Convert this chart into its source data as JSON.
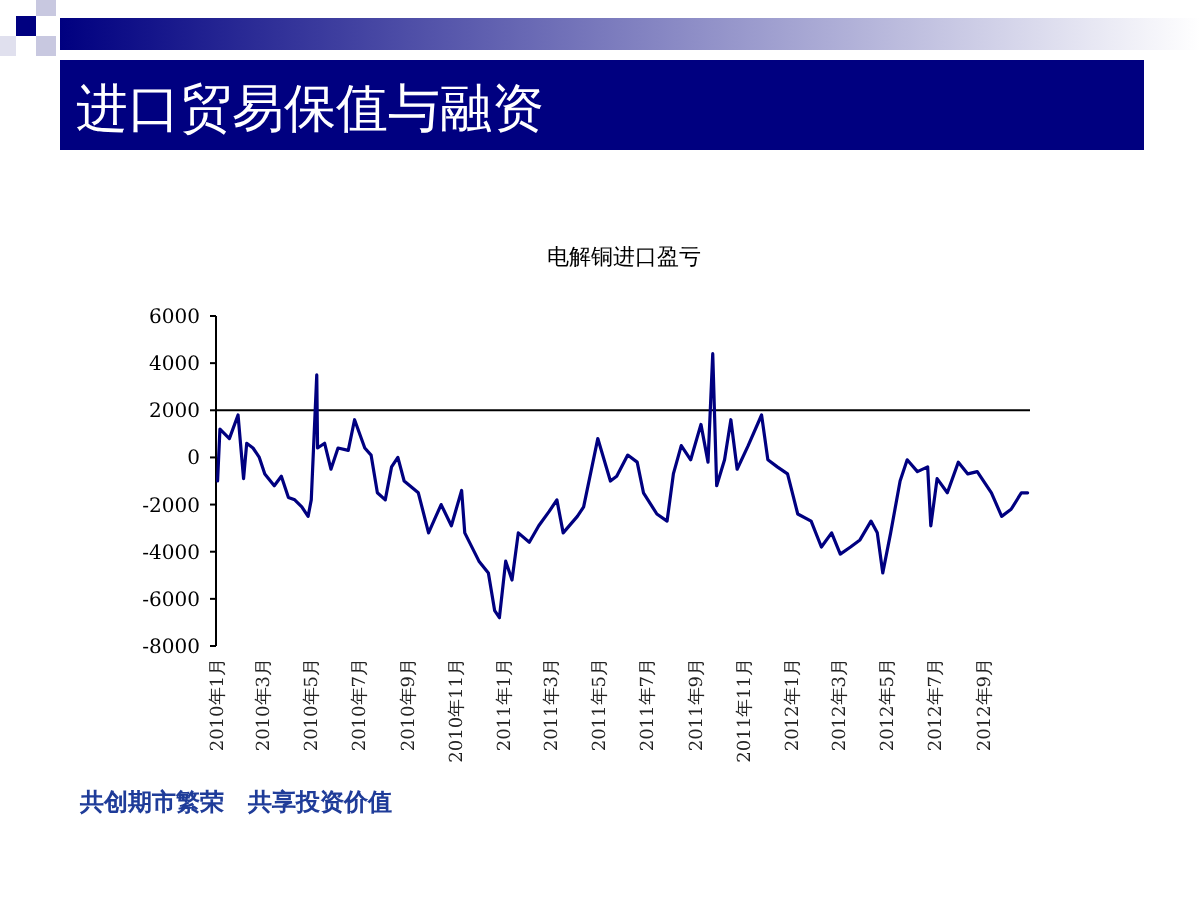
{
  "chart_data": {
    "type": "line",
    "title": "进口贸易保值与融资",
    "subtitle": "电解铜进口盈亏",
    "annotations": [
      "共创期市繁荣　共享投资价值"
    ],
    "x": [
      "2010-01-03",
      "2010-01-06",
      "2010-01-18",
      "2010-01-29",
      "2010-02-05",
      "2010-02-09",
      "2010-02-17",
      "2010-02-25",
      "2010-03-04",
      "2010-03-16",
      "2010-03-25",
      "2010-04-03",
      "2010-04-11",
      "2010-04-20",
      "2010-04-28",
      "2010-05-02",
      "2010-05-09",
      "2010-05-10",
      "2010-05-19",
      "2010-05-27",
      "2010-06-05",
      "2010-06-18",
      "2010-06-26",
      "2010-07-09",
      "2010-07-17",
      "2010-07-25",
      "2010-08-04",
      "2010-08-12",
      "2010-08-20",
      "2010-08-28",
      "2010-09-15",
      "2010-09-28",
      "2010-10-06",
      "2010-10-14",
      "2010-10-27",
      "2010-11-09",
      "2010-11-13",
      "2010-12-01",
      "2010-12-13",
      "2010-12-21",
      "2010-12-27",
      "2011-01-04",
      "2011-01-12",
      "2011-01-20",
      "2011-02-03",
      "2011-02-15",
      "2011-02-28",
      "2011-03-10",
      "2011-03-18",
      "2011-04-05",
      "2011-04-13",
      "2011-05-01",
      "2011-05-09",
      "2011-05-17",
      "2011-05-25",
      "2011-06-08",
      "2011-06-20",
      "2011-06-28",
      "2011-07-15",
      "2011-07-28",
      "2011-08-05",
      "2011-08-15",
      "2011-08-27",
      "2011-09-09",
      "2011-09-18",
      "2011-09-24",
      "2011-09-29",
      "2011-10-09",
      "2011-10-17",
      "2011-10-25",
      "2011-11-08",
      "2011-11-25",
      "2011-12-03",
      "2011-12-15",
      "2011-12-28",
      "2012-01-10",
      "2012-01-27",
      "2012-02-09",
      "2012-02-22",
      "2012-03-04",
      "2012-03-17",
      "2012-03-29",
      "2012-04-12",
      "2012-04-20",
      "2012-04-27",
      "2012-05-07",
      "2012-05-19",
      "2012-05-28",
      "2012-06-10",
      "2012-06-23",
      "2012-06-27",
      "2012-07-05",
      "2012-07-18",
      "2012-08-01",
      "2012-08-13",
      "2012-08-25",
      "2012-09-12",
      "2012-09-25",
      "2012-10-07",
      "2012-10-20",
      "2012-10-28"
    ],
    "series": [
      {
        "color": "#000080",
        "values": [
          -1000,
          1200,
          800,
          1800,
          -900,
          600,
          400,
          0,
          -700,
          -1200,
          -800,
          -1700,
          -1800,
          -2100,
          -2500,
          -1800,
          3500,
          400,
          600,
          -500,
          400,
          300,
          1600,
          400,
          100,
          -1500,
          -1800,
          -400,
          0,
          -1000,
          -1500,
          -3200,
          -2600,
          -2000,
          -2900,
          -1400,
          -3200,
          -4400,
          -4900,
          -6500,
          -6800,
          -4400,
          -5200,
          -3200,
          -3600,
          -2900,
          -2300,
          -1800,
          -3200,
          -2500,
          -2100,
          800,
          -100,
          -1000,
          -800,
          100,
          -200,
          -1500,
          -2400,
          -2700,
          -700,
          500,
          -100,
          1400,
          -200,
          4400,
          -1200,
          -100,
          1600,
          -500,
          500,
          1800,
          -100,
          -400,
          -700,
          -2400,
          -2700,
          -3800,
          -3200,
          -4100,
          -3800,
          -3500,
          -2700,
          -3200,
          -4900,
          -3200,
          -1000,
          -100,
          -600,
          -400,
          -2900,
          -900,
          -1500,
          -200,
          -700,
          -600,
          -1500,
          -2500,
          -2200,
          -1500,
          -1500
        ]
      }
    ],
    "xlim": [
      "2010-01-01",
      "2012-10-31"
    ],
    "xticks": [
      {
        "value": "2010-01-01",
        "label": "2010年1月"
      },
      {
        "value": "2010-03-01",
        "label": "2010年3月"
      },
      {
        "value": "2010-05-01",
        "label": "2010年5月"
      },
      {
        "value": "2010-07-01",
        "label": "2010年7月"
      },
      {
        "value": "2010-09-01",
        "label": "2010年9月"
      },
      {
        "value": "2010-11-01",
        "label": "2010年11月"
      },
      {
        "value": "2011-01-01",
        "label": "2011年1月"
      },
      {
        "value": "2011-03-01",
        "label": "2011年3月"
      },
      {
        "value": "2011-05-01",
        "label": "2011年5月"
      },
      {
        "value": "2011-07-01",
        "label": "2011年7月"
      },
      {
        "value": "2011-09-01",
        "label": "2011年9月"
      },
      {
        "value": "2011-11-01",
        "label": "2011年11月"
      },
      {
        "value": "2012-01-01",
        "label": "2012年1月"
      },
      {
        "value": "2012-03-01",
        "label": "2012年3月"
      },
      {
        "value": "2012-05-01",
        "label": "2012年5月"
      },
      {
        "value": "2012-07-01",
        "label": "2012年7月"
      },
      {
        "value": "2012-09-01",
        "label": "2012年9月"
      }
    ],
    "ylim": [
      -8000,
      6000
    ],
    "yticks": [
      6000,
      4000,
      2000,
      0,
      -2000,
      -4000,
      -6000,
      -8000
    ],
    "ref_lines": [
      {
        "axis": "y",
        "value": 2000,
        "color": "#000000"
      }
    ],
    "grid": false
  }
}
